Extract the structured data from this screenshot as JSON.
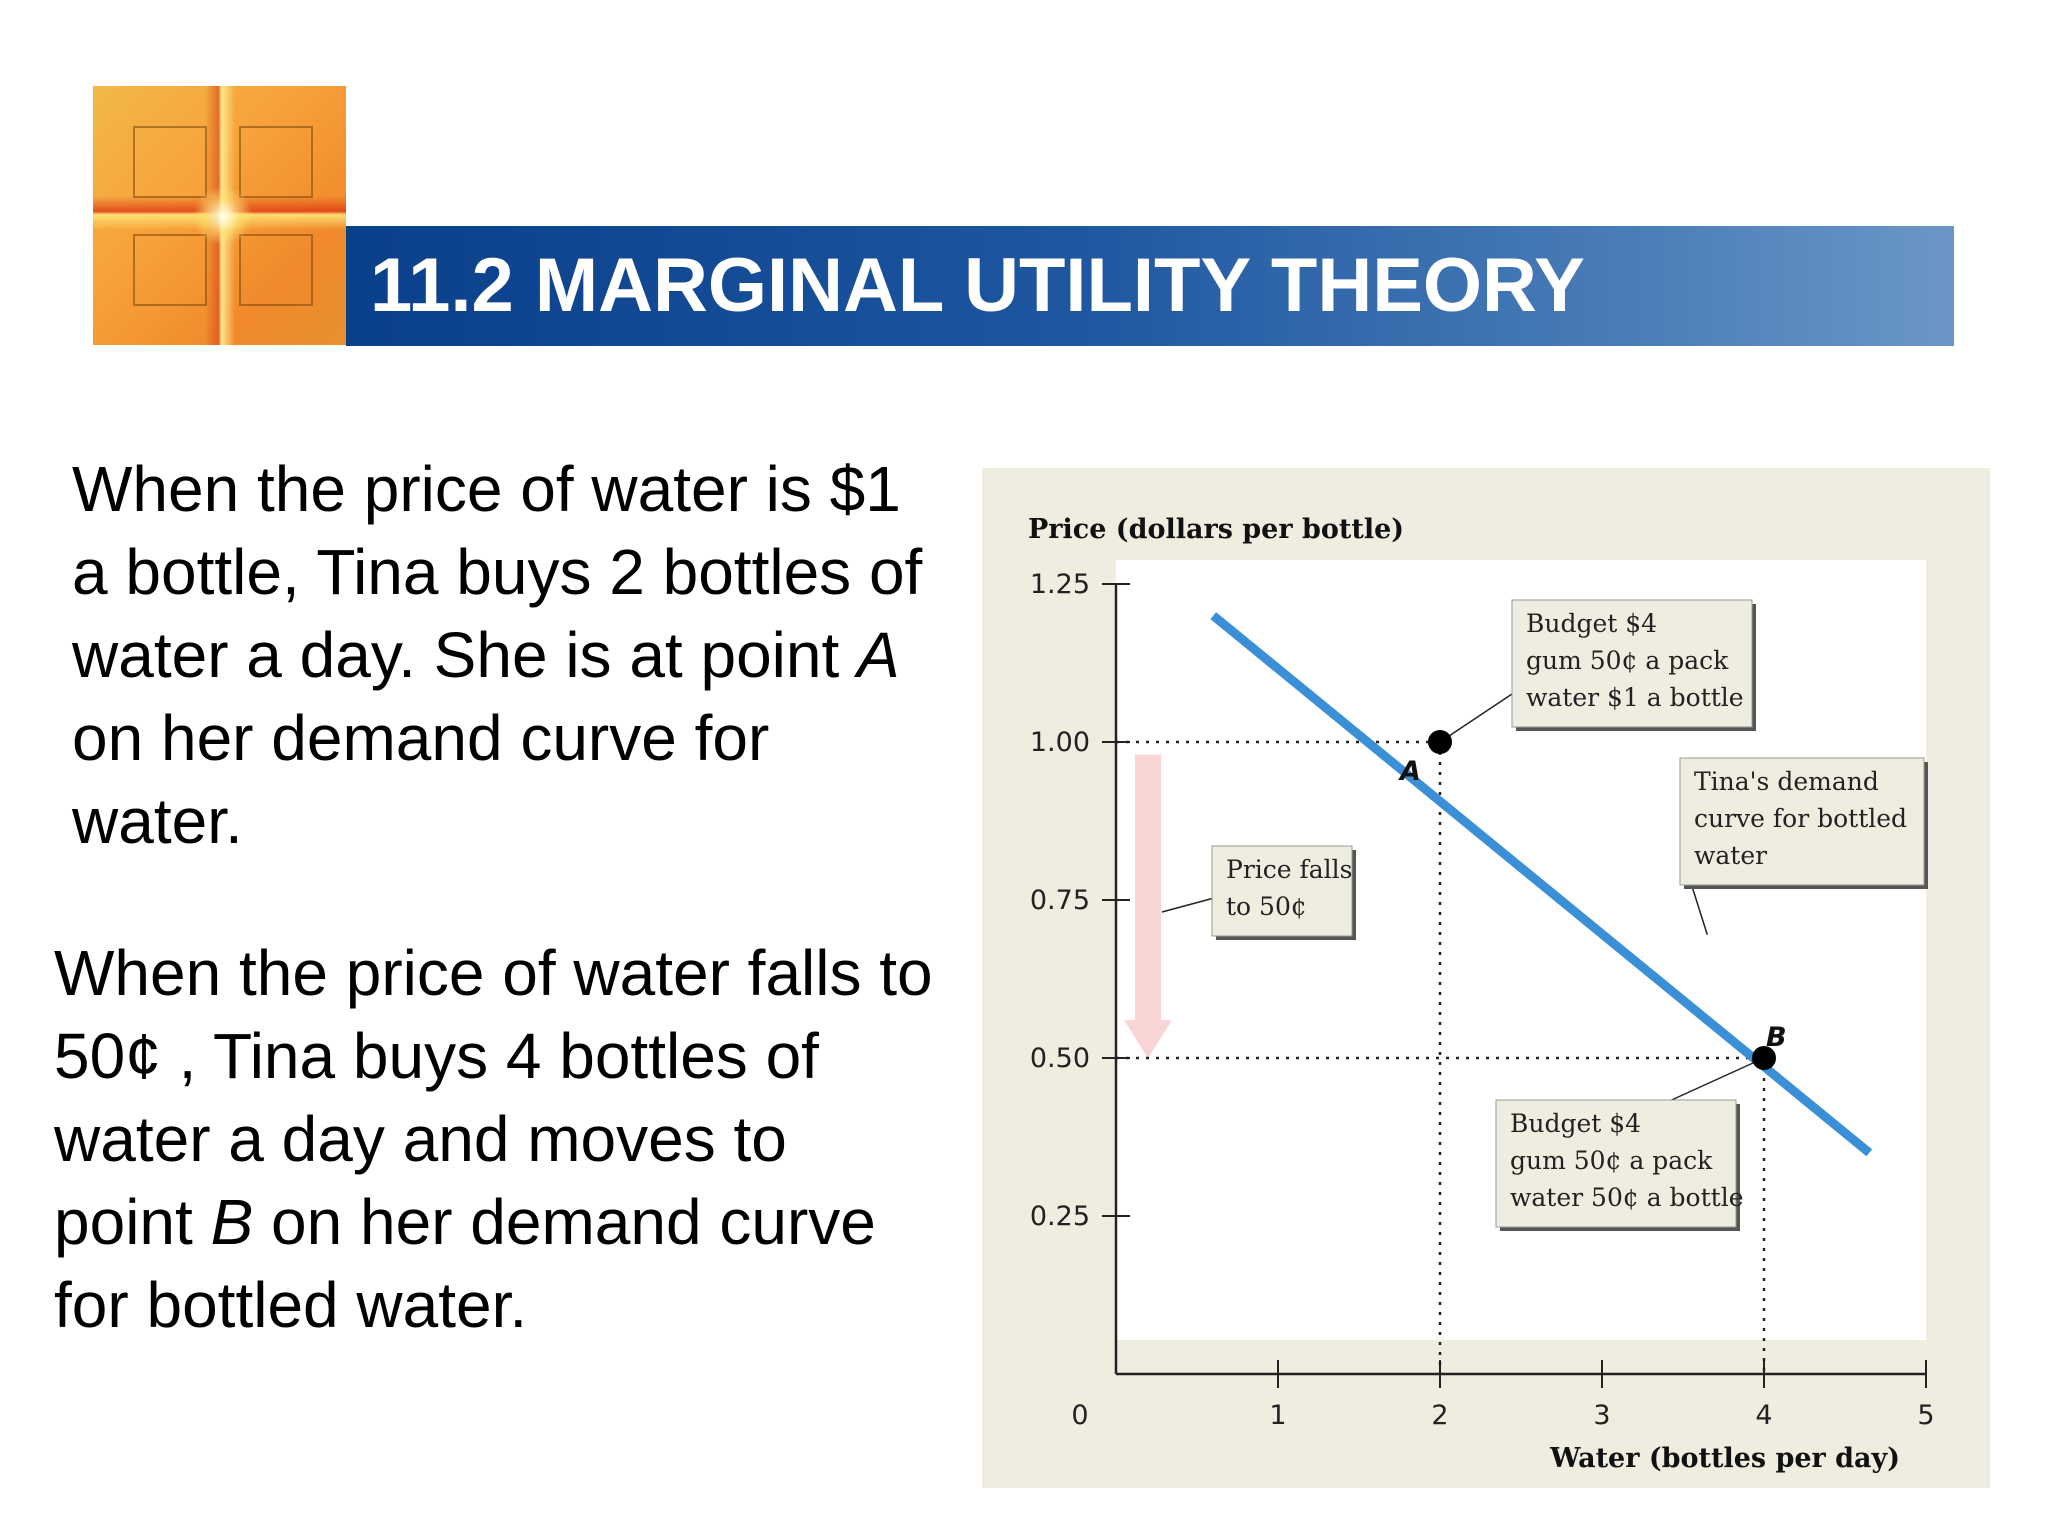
{
  "header": {
    "title": "11.2 MARGINAL UTILITY THEORY"
  },
  "body": {
    "para1": {
      "before": "When the price of water is $1 a bottle, Tina buys 2 bottles of water a day. She is at point ",
      "point": "A",
      "after": " on her demand curve for water."
    },
    "para2": {
      "before": "When the price of water falls to 50¢ , Tina buys 4 bottles of water a day and moves to point ",
      "point": "B",
      "after": " on her demand curve for bottled water."
    }
  },
  "colors": {
    "demand_line": "#3a8fd6",
    "arrow": "#f8d4d4",
    "panel_bg": "#efece0",
    "plot_bg": "#ffffff"
  },
  "chart_data": {
    "type": "line",
    "ylabel": "Price (dollars per bottle)",
    "xlabel": "Water (bottles per day)",
    "xlim": [
      0,
      5
    ],
    "ylim": [
      0,
      1.25
    ],
    "x_ticks": [
      "0",
      "1",
      "2",
      "3",
      "4",
      "5"
    ],
    "y_ticks": [
      "0.25",
      "0.50",
      "0.75",
      "1.00",
      "1.25"
    ],
    "grid": false,
    "series": [
      {
        "x": [
          0.6,
          4.65
        ],
        "y": [
          1.2,
          0.35
        ]
      }
    ],
    "points": [
      {
        "label": "A",
        "x": 2,
        "y": 1.0
      },
      {
        "label": "B",
        "x": 4,
        "y": 0.5
      }
    ],
    "annotations": {
      "budget_a": [
        "Budget $4",
        "gum 50¢ a pack",
        "water $1 a bottle"
      ],
      "budget_b": [
        "Budget $4",
        "gum 50¢ a pack",
        "water 50¢ a bottle"
      ],
      "demand_curve": [
        "Tina's demand",
        "curve for bottled",
        "water"
      ],
      "price_falls": [
        "Price falls",
        "to 50¢"
      ]
    }
  }
}
